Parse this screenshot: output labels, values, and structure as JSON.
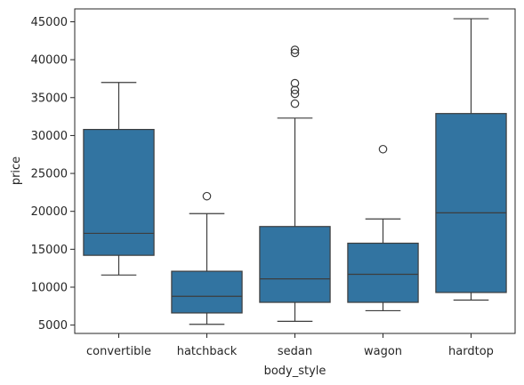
{
  "chart_data": {
    "type": "box",
    "xlabel": "body_style",
    "ylabel": "price",
    "ylim": [
      3900,
      46700
    ],
    "yticks": [
      5000,
      10000,
      15000,
      20000,
      25000,
      30000,
      35000,
      40000,
      45000
    ],
    "ytick_labels": [
      "5000",
      "10000",
      "15000",
      "20000",
      "25000",
      "30000",
      "35000",
      "40000",
      "45000"
    ],
    "box_color": "#3274a1",
    "line_color": "#3d3d3d",
    "grid": false,
    "categories": [
      "convertible",
      "hatchback",
      "sedan",
      "wagon",
      "hardtop"
    ],
    "boxes": [
      {
        "category": "convertible",
        "whislo": 11600,
        "q1": 14200,
        "med": 17100,
        "q3": 30800,
        "whishi": 37000,
        "fliers": []
      },
      {
        "category": "hatchback",
        "whislo": 5100,
        "q1": 6600,
        "med": 8800,
        "q3": 12100,
        "whishi": 19700,
        "fliers": [
          22000
        ]
      },
      {
        "category": "sedan",
        "whislo": 5500,
        "q1": 8000,
        "med": 11100,
        "q3": 18000,
        "whishi": 32300,
        "fliers": [
          34200,
          35500,
          36000,
          36900,
          40900,
          41300
        ]
      },
      {
        "category": "wagon",
        "whislo": 6900,
        "q1": 8000,
        "med": 11700,
        "q3": 15800,
        "whishi": 19000,
        "fliers": [
          28200
        ]
      },
      {
        "category": "hardtop",
        "whislo": 8300,
        "q1": 9300,
        "med": 19800,
        "q3": 32900,
        "whishi": 45400,
        "fliers": []
      }
    ]
  }
}
